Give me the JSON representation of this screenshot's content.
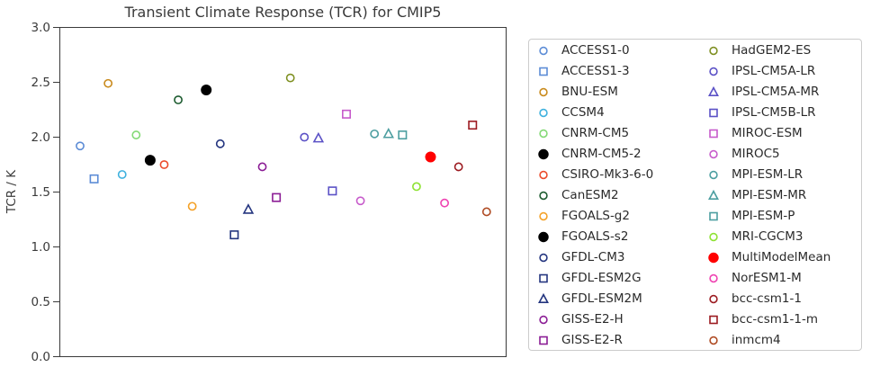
{
  "chart_data": {
    "type": "scatter",
    "title": "Transient Climate Response (TCR) for CMIP5",
    "ylabel": "TCR / K",
    "xlabel": "",
    "ylim": [
      0.0,
      3.0
    ],
    "ytick_labels": [
      "0.0",
      "0.5",
      "1.0",
      "1.5",
      "2.0",
      "2.5",
      "3.0"
    ],
    "ytick_values": [
      0.0,
      0.5,
      1.0,
      1.5,
      2.0,
      2.5,
      3.0
    ],
    "x_axis_note": "models ordered alphabetically along x, no x tick marks or labels",
    "grid": false,
    "legend": {
      "position": "outside right",
      "columns": 2
    },
    "points": [
      {
        "x": 1,
        "model": "ACCESS1-0",
        "tcr": 1.92,
        "marker": "circle",
        "color": "#5C8CD6",
        "filled": false
      },
      {
        "x": 2,
        "model": "ACCESS1-3",
        "tcr": 1.62,
        "marker": "square",
        "color": "#5C8CD6",
        "filled": false
      },
      {
        "x": 3,
        "model": "BNU-ESM",
        "tcr": 2.49,
        "marker": "circle",
        "color": "#C98A1C",
        "filled": false
      },
      {
        "x": 4,
        "model": "CCSM4",
        "tcr": 1.66,
        "marker": "circle",
        "color": "#3FB1DE",
        "filled": false
      },
      {
        "x": 5,
        "model": "CNRM-CM5",
        "tcr": 2.02,
        "marker": "circle",
        "color": "#83D975",
        "filled": false
      },
      {
        "x": 6,
        "model": "CNRM-CM5-2",
        "tcr": 1.79,
        "marker": "circle",
        "color": "#000000",
        "filled": true
      },
      {
        "x": 7,
        "model": "CSIRO-Mk3-6-0",
        "tcr": 1.75,
        "marker": "circle",
        "color": "#EB4B2B",
        "filled": false
      },
      {
        "x": 8,
        "model": "CanESM2",
        "tcr": 2.34,
        "marker": "circle",
        "color": "#1C5B2F",
        "filled": false
      },
      {
        "x": 9,
        "model": "FGOALS-g2",
        "tcr": 1.37,
        "marker": "circle",
        "color": "#F4A127",
        "filled": false
      },
      {
        "x": 10,
        "model": "FGOALS-s2",
        "tcr": 2.43,
        "marker": "circle",
        "color": "#000000",
        "filled": true
      },
      {
        "x": 11,
        "model": "GFDL-CM3",
        "tcr": 1.94,
        "marker": "circle",
        "color": "#24357F",
        "filled": false
      },
      {
        "x": 12,
        "model": "GFDL-ESM2G",
        "tcr": 1.11,
        "marker": "square",
        "color": "#24357F",
        "filled": false
      },
      {
        "x": 13,
        "model": "GFDL-ESM2M",
        "tcr": 1.34,
        "marker": "triangle",
        "color": "#24357F",
        "filled": false
      },
      {
        "x": 14,
        "model": "GISS-E2-H",
        "tcr": 1.73,
        "marker": "circle",
        "color": "#8B1D95",
        "filled": false
      },
      {
        "x": 15,
        "model": "GISS-E2-R",
        "tcr": 1.45,
        "marker": "square",
        "color": "#8B1D95",
        "filled": false
      },
      {
        "x": 16,
        "model": "HadGEM2-ES",
        "tcr": 2.54,
        "marker": "circle",
        "color": "#7F9022",
        "filled": false
      },
      {
        "x": 17,
        "model": "IPSL-CM5A-LR",
        "tcr": 2.0,
        "marker": "circle",
        "color": "#5B51C6",
        "filled": false
      },
      {
        "x": 18,
        "model": "IPSL-CM5A-MR",
        "tcr": 1.99,
        "marker": "triangle",
        "color": "#5B51C6",
        "filled": false
      },
      {
        "x": 19,
        "model": "IPSL-CM5B-LR",
        "tcr": 1.51,
        "marker": "square",
        "color": "#5B51C6",
        "filled": false
      },
      {
        "x": 20,
        "model": "MIROC-ESM",
        "tcr": 2.21,
        "marker": "square",
        "color": "#C75BCB",
        "filled": false
      },
      {
        "x": 21,
        "model": "MIROC5",
        "tcr": 1.42,
        "marker": "circle",
        "color": "#C75BCB",
        "filled": false
      },
      {
        "x": 22,
        "model": "MPI-ESM-LR",
        "tcr": 2.03,
        "marker": "circle",
        "color": "#4C9EA0",
        "filled": false
      },
      {
        "x": 23,
        "model": "MPI-ESM-MR",
        "tcr": 2.03,
        "marker": "triangle",
        "color": "#4C9EA0",
        "filled": false
      },
      {
        "x": 24,
        "model": "MPI-ESM-P",
        "tcr": 2.02,
        "marker": "square",
        "color": "#4C9EA0",
        "filled": false
      },
      {
        "x": 25,
        "model": "MRI-CGCM3",
        "tcr": 1.55,
        "marker": "circle",
        "color": "#8EE233",
        "filled": false
      },
      {
        "x": 26,
        "model": "MultiModelMean",
        "tcr": 1.82,
        "marker": "circle",
        "color": "#FF0000",
        "filled": true
      },
      {
        "x": 27,
        "model": "NorESM1-M",
        "tcr": 1.4,
        "marker": "circle",
        "color": "#EF41B1",
        "filled": false
      },
      {
        "x": 28,
        "model": "bcc-csm1-1",
        "tcr": 1.73,
        "marker": "circle",
        "color": "#9C1B21",
        "filled": false
      },
      {
        "x": 29,
        "model": "bcc-csm1-1-m",
        "tcr": 2.11,
        "marker": "square",
        "color": "#9C1B21",
        "filled": false
      },
      {
        "x": 30,
        "model": "inmcm4",
        "tcr": 1.32,
        "marker": "circle",
        "color": "#AF4B23",
        "filled": false
      }
    ]
  }
}
